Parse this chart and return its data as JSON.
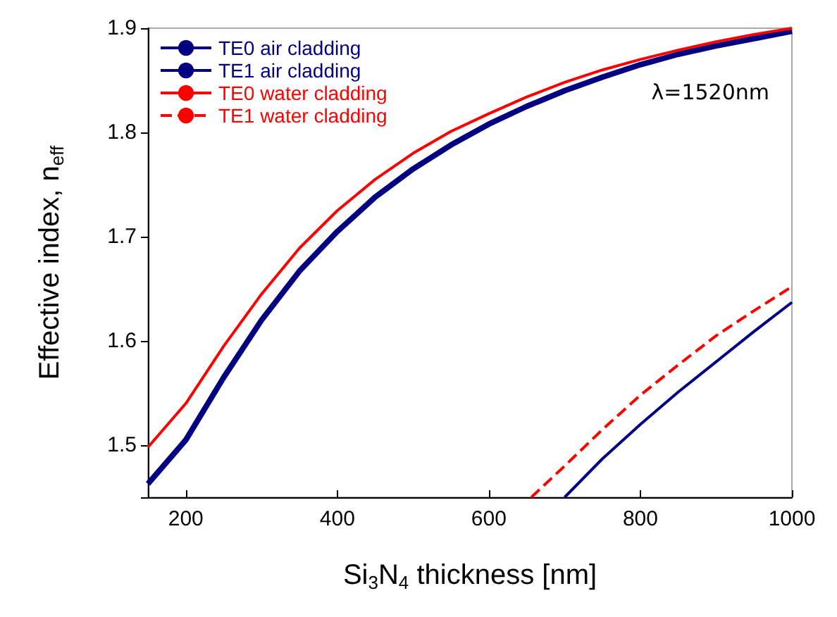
{
  "chart_data": {
    "type": "line",
    "xlabel": "Si$_{3}$N$_{4}$ thickness [nm]",
    "ylabel": "Effective index, n$_{eff}$",
    "annotations": [
      "λ=1520nm"
    ],
    "xlim": [
      150,
      1000
    ],
    "xticks": [
      200,
      400,
      600,
      800,
      1000
    ],
    "ylim": [
      1.45,
      1.9
    ],
    "yticks": [
      {
        "value": 1.45,
        "label": null
      },
      1.5,
      1.6,
      1.7,
      1.8,
      1.9
    ],
    "grid": false,
    "legend": "top left",
    "series": [
      {
        "name": "TE0 air cladding",
        "color": "#000080",
        "x": [
          150,
          200,
          250,
          300,
          350,
          400,
          450,
          500,
          550,
          600,
          650,
          700,
          750,
          800,
          850,
          900,
          950,
          1000
        ],
        "values": [
          1.463,
          1.505,
          1.565,
          1.62,
          1.667,
          1.705,
          1.738,
          1.765,
          1.788,
          1.808,
          1.825,
          1.84,
          1.853,
          1.865,
          1.875,
          1.883,
          1.89,
          1.897
        ]
      },
      {
        "name": "TE1 air cladding",
        "color": "#000080",
        "x": [
          700,
          750,
          800,
          850,
          900,
          950,
          1000
        ],
        "values": [
          1.45,
          1.487,
          1.52,
          1.551,
          1.58,
          1.609,
          1.637
        ]
      },
      {
        "name": "TE0 water cladding",
        "color": "#ff0000",
        "x": [
          150,
          200,
          250,
          300,
          350,
          400,
          450,
          500,
          550,
          600,
          650,
          700,
          750,
          800,
          850,
          900,
          950,
          1000
        ],
        "values": [
          1.498,
          1.54,
          1.595,
          1.645,
          1.689,
          1.725,
          1.755,
          1.78,
          1.801,
          1.818,
          1.834,
          1.848,
          1.86,
          1.87,
          1.879,
          1.887,
          1.894,
          1.9
        ]
      },
      {
        "name": "TE1 water cladding",
        "color": "#ff0000",
        "line_style": "dashed",
        "x": [
          656,
          700,
          750,
          800,
          850,
          900,
          950,
          1000
        ],
        "values": [
          1.45,
          1.48,
          1.515,
          1.548,
          1.577,
          1.605,
          1.629,
          1.652
        ]
      }
    ]
  }
}
